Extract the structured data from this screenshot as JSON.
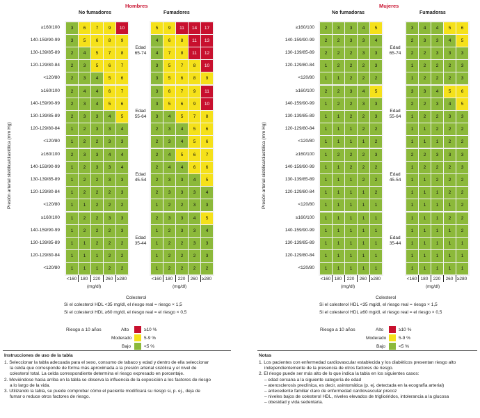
{
  "colors": {
    "green": "#8cb93a",
    "yellow": "#f5e11a",
    "red": "#c8102e"
  },
  "men": {
    "title": "Hombres",
    "nonsmoker_label": "No fumadores",
    "smoker_label": "Fumadores"
  },
  "women": {
    "title": "Mujeres",
    "nonsmoker_label": "No fumadoras",
    "smoker_label": "Fumadoras"
  },
  "ylabel": "Presión arterial sistólica/diastólica (mm Hg)",
  "xunit": "(mg/dl)",
  "xlabel": "Colesterol",
  "bp_labels": [
    "≥160/100",
    "140-159/90-99",
    "130-139/85-89",
    "120-129/80-84",
    "<120/80"
  ],
  "chol_labels": [
    "<160",
    "180",
    "220",
    "260",
    "≥280"
  ],
  "hdl_note_1": "Si el colesterol HDL <35 mg/dl, el riesgo real = riesgo × 1,5",
  "hdl_note_2": "Si el colesterol HDL ≥60 mg/dl, el riesgo real = el riesgo × 0,5",
  "legend": {
    "title": "Riesgo a 10 años",
    "high_label": "Alto",
    "high_range": "≥10 %",
    "mid_label": "Moderado",
    "mid_range": "5-9 %",
    "low_label": "Bajo",
    "low_range": "<5 %"
  },
  "instructions": {
    "title": "Instrucciones de uso de la tabla",
    "lines": [
      "1. Seleccionar la tabla adecuada para el sexo, consumo de tabaco y edad y dentro de ella seleccionar",
      "la celda que corresponde de forma más aproximada a la presión arterial sistólica y el nivel de",
      "colesterol total. La celda correspondiente determina el riesgo expresado en porcentaje.",
      "2. Moviéndose hacia arriba en la tabla se observa la influencia de la exposición a los factores de riesgo",
      "a lo largo de la vida.",
      "3. Utilizando la tabla, se puede comprobar cómo el paciente modificará su riesgo si, p. ej., deja de",
      "fumar o reduce otros factores de riesgo."
    ]
  },
  "notes": {
    "title": "Notas",
    "lines": [
      "1. Los pacientes con enfermedad cardiovascular establecida y los diabéticos presentan riesgo alto",
      "independientemente de la presencia de otros factores de riesgo.",
      "2. El riesgo puede ser más alto de lo que indica la tabla en los siguientes casos:",
      "– edad cercana a la siguiente categoría de edad",
      "– aterosclerosis preclínica, es decir, asintomática (p. ej. detectada en la ecografía arterial)",
      "– antecedente familiar claro de enfermedad cardiovascular precoz",
      "– niveles bajos de colesterol HDL, niveles elevados de triglicéridos, intolerancia a la glucosa",
      "– obesidad y vida sedentaria."
    ]
  },
  "chart_data": [
    {
      "type": "heatmap",
      "title": "Hombres",
      "xlabel": "Colesterol (mg/dl)",
      "ylabel": "Presión arterial sistólica/diastólica (mm Hg)",
      "x_categories": [
        "<160",
        "180",
        "220",
        "260",
        "≥280"
      ],
      "y_categories": [
        "≥160/100",
        "140-159/90-99",
        "130-139/85-89",
        "120-129/80-84",
        "<120/80"
      ],
      "age_groups": [
        {
          "age": "65-74",
          "no_fumadores": [
            [
              3,
              6,
              7,
              9,
              10
            ],
            [
              3,
              5,
              6,
              8,
              9
            ],
            [
              2,
              4,
              5,
              7,
              8
            ],
            [
              2,
              3,
              5,
              6,
              7
            ],
            [
              2,
              3,
              4,
              5,
              6
            ]
          ],
          "fumadores": [
            [
              5,
              9,
              11,
              14,
              17
            ],
            [
              4,
              6,
              8,
              11,
              13
            ],
            [
              4,
              7,
              8,
              11,
              12
            ],
            [
              3,
              5,
              7,
              8,
              10
            ],
            [
              3,
              5,
              6,
              8,
              9
            ]
          ]
        },
        {
          "age": "55-64",
          "no_fumadores": [
            [
              2,
              4,
              4,
              6,
              7
            ],
            [
              2,
              3,
              4,
              5,
              6
            ],
            [
              2,
              3,
              3,
              4,
              5
            ],
            [
              1,
              2,
              3,
              3,
              4
            ],
            [
              1,
              2,
              2,
              3,
              3
            ]
          ],
          "fumadores": [
            [
              3,
              6,
              7,
              9,
              11
            ],
            [
              3,
              5,
              6,
              9,
              10
            ],
            [
              3,
              4,
              5,
              7,
              8
            ],
            [
              2,
              3,
              4,
              5,
              6
            ],
            [
              2,
              3,
              4,
              5,
              6
            ]
          ]
        },
        {
          "age": "45-54",
          "no_fumadores": [
            [
              2,
              3,
              3,
              4,
              4
            ],
            [
              1,
              2,
              3,
              3,
              4
            ],
            [
              1,
              2,
              2,
              3,
              3
            ],
            [
              1,
              2,
              2,
              2,
              3
            ],
            [
              1,
              1,
              2,
              2,
              2
            ]
          ],
          "fumadores": [
            [
              2,
              4,
              5,
              6,
              7
            ],
            [
              2,
              4,
              4,
              6,
              6
            ],
            [
              2,
              3,
              3,
              4,
              5
            ],
            [
              2,
              3,
              3,
              3,
              4
            ],
            [
              1,
              2,
              2,
              3,
              3
            ]
          ]
        },
        {
          "age": "35-44",
          "no_fumadores": [
            [
              1,
              2,
              2,
              3,
              3
            ],
            [
              1,
              2,
              2,
              2,
              3
            ],
            [
              1,
              1,
              2,
              2,
              2
            ],
            [
              1,
              1,
              1,
              2,
              2
            ],
            [
              1,
              1,
              1,
              2,
              2
            ]
          ],
          "fumadores": [
            [
              2,
              3,
              3,
              4,
              5
            ],
            [
              1,
              2,
              3,
              3,
              4
            ],
            [
              1,
              2,
              2,
              3,
              3
            ],
            [
              1,
              2,
              2,
              2,
              3
            ],
            [
              1,
              2,
              2,
              2,
              2
            ]
          ]
        }
      ]
    },
    {
      "type": "heatmap",
      "title": "Mujeres",
      "xlabel": "Colesterol (mg/dl)",
      "ylabel": "Presión arterial sistólica/diastólica (mm Hg)",
      "x_categories": [
        "<160",
        "180",
        "220",
        "260",
        "≥280"
      ],
      "y_categories": [
        "≥160/100",
        "140-159/90-99",
        "130-139/85-89",
        "120-129/80-84",
        "<120/80"
      ],
      "age_groups": [
        {
          "age": "65-74",
          "no_fumadoras": [
            [
              2,
              3,
              3,
              4,
              5
            ],
            [
              2,
              2,
              3,
              3,
              4
            ],
            [
              2,
              2,
              2,
              3,
              3
            ],
            [
              1,
              2,
              2,
              2,
              3
            ],
            [
              1,
              1,
              2,
              2,
              2
            ]
          ],
          "fumadoras": [
            [
              3,
              4,
              4,
              5,
              6
            ],
            [
              2,
              3,
              3,
              4,
              5
            ],
            [
              2,
              2,
              3,
              3,
              3
            ],
            [
              1,
              2,
              2,
              2,
              3
            ],
            [
              1,
              2,
              2,
              2,
              3
            ]
          ]
        },
        {
          "age": "55-64",
          "no_fumadoras": [
            [
              2,
              2,
              3,
              4,
              5
            ],
            [
              1,
              2,
              2,
              3,
              3
            ],
            [
              1,
              1,
              2,
              2,
              3
            ],
            [
              1,
              1,
              1,
              2,
              2
            ],
            [
              1,
              1,
              1,
              1,
              2
            ]
          ],
          "fumadoras": [
            [
              3,
              3,
              4,
              5,
              6
            ],
            [
              2,
              2,
              3,
              4,
              5
            ],
            [
              1,
              2,
              2,
              3,
              3
            ],
            [
              1,
              1,
              2,
              2,
              2
            ],
            [
              1,
              1,
              1,
              2,
              2
            ]
          ]
        },
        {
          "age": "45-54",
          "no_fumadoras": [
            [
              1,
              2,
              2,
              2,
              3
            ],
            [
              1,
              1,
              2,
              2,
              2
            ],
            [
              1,
              1,
              1,
              2,
              2
            ],
            [
              1,
              1,
              1,
              1,
              2
            ],
            [
              1,
              1,
              1,
              1,
              1
            ]
          ],
          "fumadoras": [
            [
              2,
              2,
              3,
              3,
              3
            ],
            [
              1,
              2,
              2,
              2,
              3
            ],
            [
              1,
              1,
              2,
              2,
              2
            ],
            [
              1,
              1,
              1,
              2,
              2
            ],
            [
              1,
              1,
              1,
              1,
              2
            ]
          ]
        },
        {
          "age": "35-44",
          "no_fumadoras": [
            [
              1,
              1,
              1,
              1,
              1
            ],
            [
              1,
              1,
              1,
              1,
              1
            ],
            [
              1,
              1,
              1,
              1,
              1
            ],
            [
              1,
              1,
              1,
              1,
              1
            ],
            [
              1,
              1,
              1,
              1,
              1
            ]
          ],
          "fumadoras": [
            [
              1,
              1,
              1,
              2,
              2
            ],
            [
              1,
              1,
              1,
              1,
              2
            ],
            [
              1,
              1,
              1,
              1,
              1
            ],
            [
              1,
              1,
              1,
              1,
              1
            ],
            [
              1,
              1,
              1,
              1,
              1
            ]
          ]
        }
      ]
    }
  ]
}
